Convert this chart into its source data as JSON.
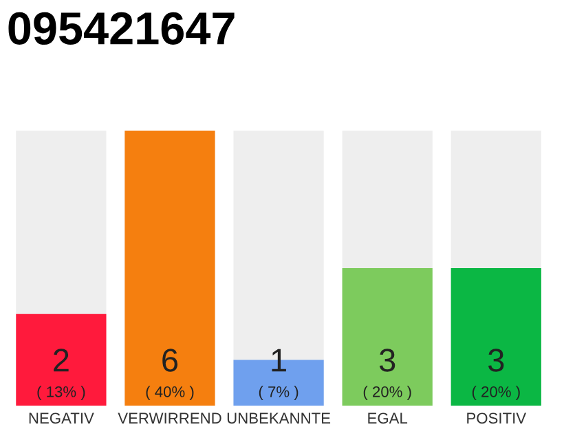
{
  "chart_data": {
    "type": "bar",
    "title": "095421647",
    "categories": [
      "NEGATIV",
      "VERWIRREND",
      "UNBEKANNTE",
      "EGAL",
      "POSITIV"
    ],
    "values": [
      2,
      6,
      1,
      3,
      3
    ],
    "colors": [
      "#ff1a3c",
      "#f57f0f",
      "#6fa0ee",
      "#7dcb5d",
      "#0bb744"
    ],
    "value_labels": [
      "2\n( 13% )",
      "6\n( 40% )",
      "1\n( 7% )",
      "3\n( 20% )",
      "3\n( 20% )"
    ],
    "ylim": [
      0,
      6
    ],
    "tick_labels": "x",
    "grid": false,
    "legend": false
  }
}
